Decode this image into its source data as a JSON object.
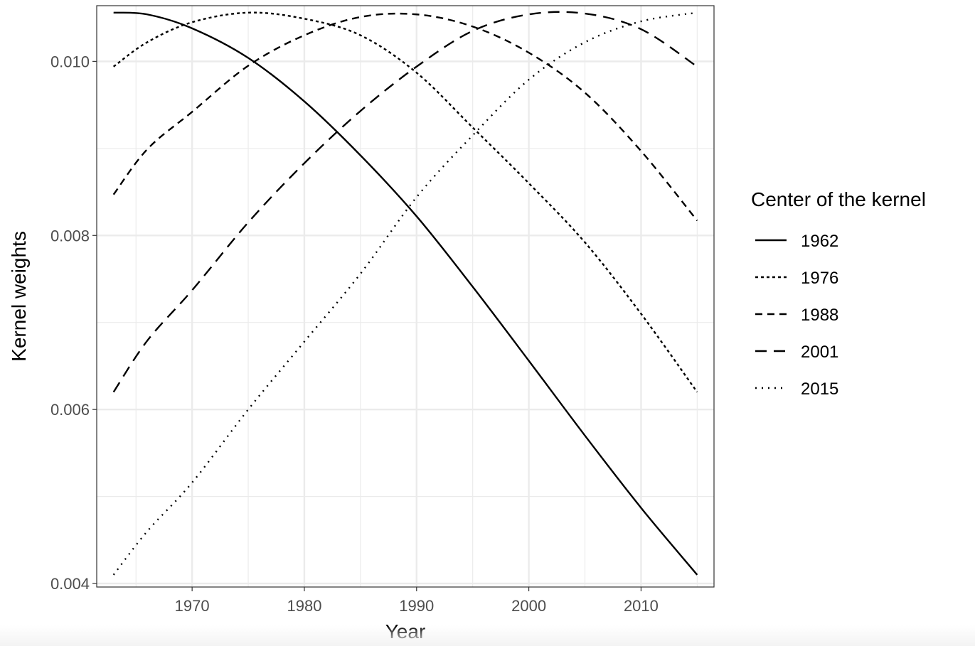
{
  "chart_data": {
    "type": "line",
    "xlabel": "Year",
    "ylabel": "Kernel weights",
    "xlim": [
      1961.5,
      2016.5
    ],
    "ylim": [
      0.00396,
      0.01064
    ],
    "x_ticks": [
      1970,
      1980,
      1990,
      2000,
      2010
    ],
    "y_ticks": [
      0.004,
      0.006,
      0.008,
      0.01
    ],
    "y_tick_labels": [
      "0.004",
      "0.006",
      "0.008",
      "0.010"
    ],
    "grid": true,
    "legend": {
      "title": "Center of the kernel",
      "placement": "right"
    },
    "x_range": [
      1963,
      2015
    ],
    "series": [
      {
        "name": "1962",
        "dash": "solid",
        "x": [
          1963,
          1966,
          1970,
          1975,
          1980,
          1985,
          1990,
          1995,
          2000,
          2005,
          2010,
          2015
        ],
        "values": [
          0.01056,
          0.01054,
          0.01038,
          0.01004,
          0.00954,
          0.00892,
          0.00822,
          0.00741,
          0.00656,
          0.0057,
          0.00487,
          0.0041
        ]
      },
      {
        "name": "1976",
        "dash": "short",
        "x": [
          1963,
          1966,
          1970,
          1975,
          1980,
          1985,
          1990,
          1995,
          2000,
          2005,
          2010,
          2015
        ],
        "values": [
          0.00994,
          0.01022,
          0.01045,
          0.01056,
          0.01049,
          0.0103,
          0.00987,
          0.00924,
          0.0086,
          0.00792,
          0.0071,
          0.0062
        ]
      },
      {
        "name": "1988",
        "dash": "medium",
        "x": [
          1963,
          1966,
          1970,
          1975,
          1980,
          1985,
          1990,
          1995,
          2000,
          2005,
          2010,
          2015
        ],
        "values": [
          0.00847,
          0.00899,
          0.00942,
          0.00995,
          0.0103,
          0.01051,
          0.01054,
          0.0104,
          0.0101,
          0.00964,
          0.00897,
          0.00817
        ]
      },
      {
        "name": "2001",
        "dash": "long",
        "x": [
          1963,
          1966,
          1970,
          1975,
          1980,
          1985,
          1990,
          1995,
          2000,
          2005,
          2010,
          2015
        ],
        "values": [
          0.0062,
          0.00679,
          0.00737,
          0.00815,
          0.00883,
          0.00943,
          0.00994,
          0.01035,
          0.01054,
          0.01055,
          0.01037,
          0.00994
        ]
      },
      {
        "name": "2015",
        "dash": "dotted",
        "x": [
          1963,
          1966,
          1970,
          1975,
          1980,
          1985,
          1990,
          1995,
          2000,
          2005,
          2010,
          2015
        ],
        "values": [
          0.0041,
          0.0046,
          0.00516,
          0.006,
          0.00678,
          0.00756,
          0.00844,
          0.00915,
          0.00979,
          0.01022,
          0.01046,
          0.01056
        ]
      }
    ]
  },
  "colors": {
    "line": "#000000",
    "grid": "#ebebeb",
    "panel_border": "#333333",
    "tick_text": "#4d4d4d"
  }
}
